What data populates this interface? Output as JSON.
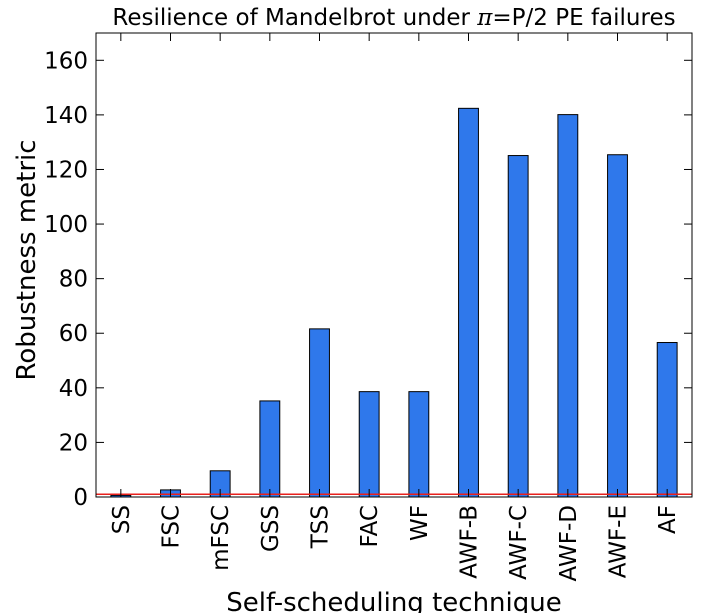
{
  "chart_data": {
    "type": "bar",
    "title": {
      "prefix": "Resilience of Mandelbrot under ",
      "symbol": "π",
      "suffix": "=P/2 PE failures"
    },
    "xlabel": "Self-scheduling technique",
    "ylabel": "Robustness metric",
    "categories": [
      "SS",
      "FSC",
      "mFSC",
      "GSS",
      "TSS",
      "FAC",
      "WF",
      "AWF-B",
      "AWF-C",
      "AWF-D",
      "AWF-E",
      "AF"
    ],
    "values": [
      0.6,
      2.6,
      9.6,
      35.2,
      61.6,
      38.6,
      38.6,
      142.4,
      125.1,
      140.1,
      125.4,
      56.6
    ],
    "ylim": [
      0,
      170
    ],
    "yticks": [
      0,
      20,
      40,
      60,
      80,
      100,
      120,
      140,
      160
    ],
    "reference_line": 1,
    "grid": false,
    "colors": {
      "bar_fill": "#2f78eb",
      "bar_edge": "#000000",
      "reference_line": "#e8201c"
    }
  }
}
